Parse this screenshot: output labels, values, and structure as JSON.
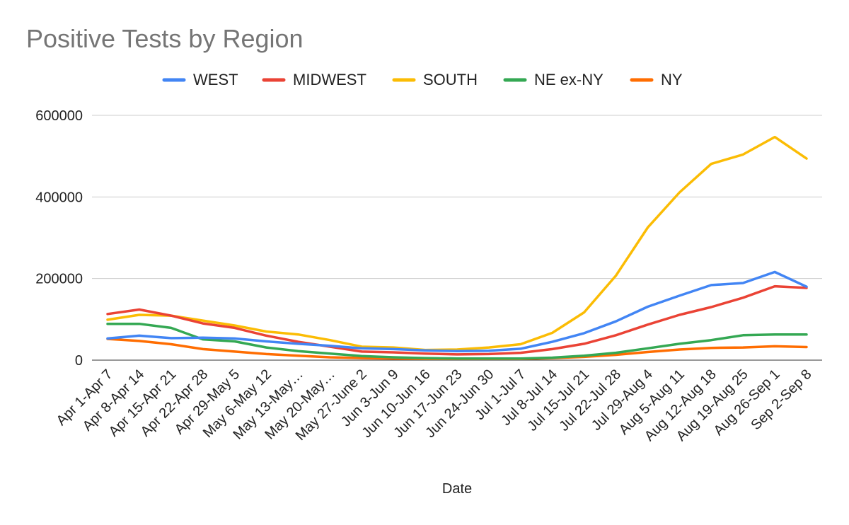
{
  "chart_data": {
    "type": "line",
    "title": "Positive Tests by Region",
    "xlabel": "Date",
    "ylabel": "",
    "ylim": [
      0,
      600000
    ],
    "y_ticks": [
      "0",
      "200000",
      "400000",
      "600000"
    ],
    "grid": true,
    "legend_position": "top",
    "categories": [
      "Apr 1-Apr 7",
      "Apr 8-Apr 14",
      "Apr 15-Apr 21",
      "Apr 22-Apr 28",
      "Apr 29-May 5",
      "May 6-May 12",
      "May 13-May…",
      "May 20-May…",
      "May 27-June 2",
      "Jun 3-Jun 9",
      "Jun 10-Jun 16",
      "Jun 17-Jun 23",
      "Jun 24-Jun 30",
      "Jul 1-Jul 7",
      "Jul 8-Jul 14",
      "Jul 15-Jul 21",
      "Jul 22-Jul 28",
      "Jul 29-Aug 4",
      "Aug 5-Aug 11",
      "Aug 12-Aug 18",
      "Aug 19-Aug 25",
      "Aug 26-Sep 1",
      "Sep 2-Sep 8"
    ],
    "series": [
      {
        "name": "WEST",
        "color": "#4285f4",
        "values": [
          53000,
          60000,
          54000,
          55000,
          53000,
          46000,
          40000,
          35000,
          29000,
          27000,
          24000,
          22000,
          23000,
          28000,
          45000,
          66000,
          95000,
          131000,
          158000,
          184000,
          189000,
          216000,
          180000
        ]
      },
      {
        "name": "MIDWEST",
        "color": "#ea4335",
        "values": [
          113000,
          124000,
          109000,
          90000,
          79000,
          60000,
          45000,
          33000,
          21000,
          19000,
          16000,
          14000,
          15000,
          18000,
          27000,
          40000,
          61000,
          87000,
          111000,
          130000,
          153000,
          181000,
          177000
        ]
      },
      {
        "name": "SOUTH",
        "color": "#fbbc04",
        "values": [
          99000,
          111000,
          109000,
          97000,
          85000,
          70000,
          63000,
          49000,
          33000,
          31000,
          25000,
          26000,
          31000,
          39000,
          67000,
          117000,
          207000,
          325000,
          411000,
          481000,
          504000,
          547000,
          494000
        ]
      },
      {
        "name": "NE ex-NY",
        "color": "#34a853",
        "values": [
          89000,
          89000,
          79000,
          51000,
          46000,
          31000,
          22000,
          16000,
          10000,
          7000,
          5000,
          4000,
          4000,
          4000,
          6000,
          11000,
          18000,
          29000,
          40000,
          49000,
          61000,
          63000,
          63000
        ]
      },
      {
        "name": "NY",
        "color": "#ff6d01",
        "values": [
          52000,
          47000,
          39000,
          27000,
          21000,
          15000,
          11000,
          7000,
          5000,
          4000,
          3000,
          3000,
          3000,
          3000,
          5000,
          8000,
          13000,
          20000,
          26000,
          30000,
          31000,
          34000,
          32000
        ]
      }
    ]
  }
}
